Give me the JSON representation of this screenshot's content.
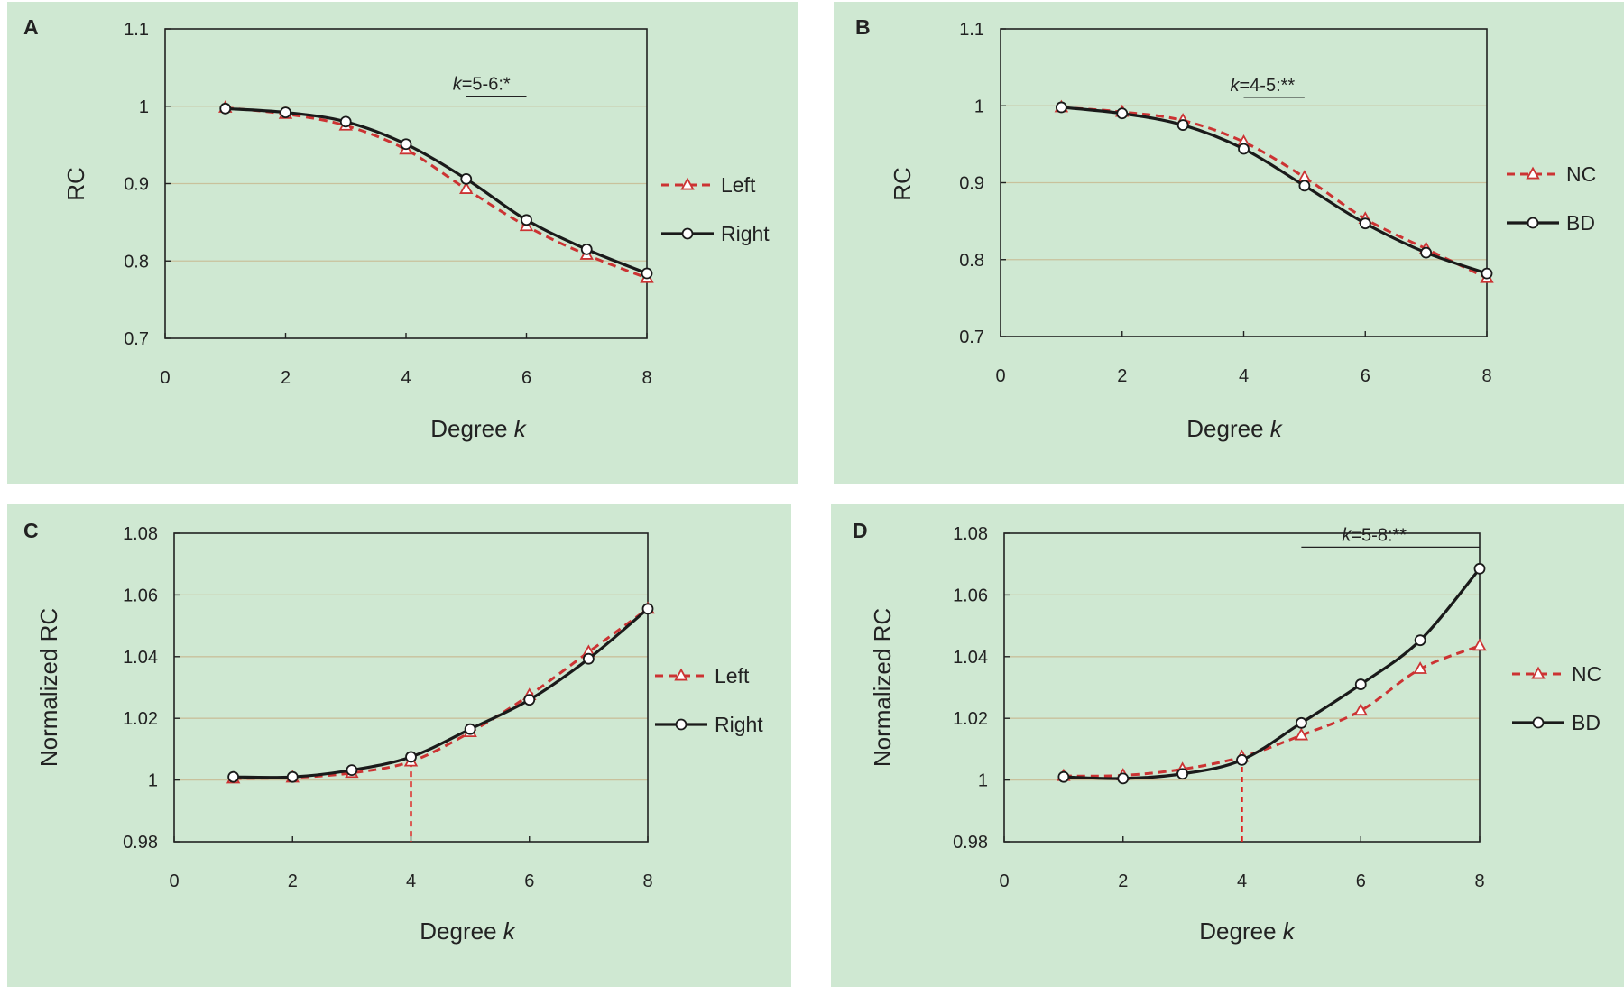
{
  "colors": {
    "panel_background": "#cfe8d2",
    "gridline": "#c9c19c",
    "series_red": "#cc3333",
    "series_black": "#1a1a1a",
    "reference_dash": "#e02020"
  },
  "chart_data": [
    {
      "id": "A",
      "type": "line",
      "letter": "A",
      "xlabel": "Degree",
      "xlabel_var": "k",
      "ylabel": "RC",
      "xlim": [
        0,
        8
      ],
      "ylim": [
        0.7,
        1.1
      ],
      "xticks": [
        0,
        2,
        4,
        6,
        8
      ],
      "yticks": [
        0.7,
        0.8,
        0.9,
        1.0,
        1.1
      ],
      "ytick_labels": [
        "0.7",
        "0.8",
        "0.9",
        "1",
        "1.1"
      ],
      "grid": true,
      "legend_position": "right",
      "series": [
        {
          "name": "Left",
          "style": "red-dashed-triangle",
          "x": [
            1,
            2,
            3,
            4,
            5,
            6,
            7,
            8
          ],
          "values": [
            0.998,
            0.99,
            0.975,
            0.944,
            0.893,
            0.845,
            0.808,
            0.778
          ]
        },
        {
          "name": "Right",
          "style": "black-solid-circle",
          "x": [
            1,
            2,
            3,
            4,
            5,
            6,
            7,
            8
          ],
          "values": [
            0.997,
            0.992,
            0.98,
            0.951,
            0.906,
            0.853,
            0.815,
            0.784
          ]
        }
      ],
      "annotation": {
        "var": "k",
        "text": "=5-6:*",
        "x_range": [
          5,
          6
        ],
        "y": 1.013
      },
      "reference_x": null
    },
    {
      "id": "B",
      "type": "line",
      "letter": "B",
      "xlabel": "Degree",
      "xlabel_var": "k",
      "ylabel": "RC",
      "xlim": [
        0,
        8
      ],
      "ylim": [
        0.7,
        1.1
      ],
      "xticks": [
        0,
        2,
        4,
        6,
        8
      ],
      "yticks": [
        0.7,
        0.8,
        0.9,
        1.0,
        1.1
      ],
      "ytick_labels": [
        "0.7",
        "0.8",
        "0.9",
        "1",
        "1.1"
      ],
      "grid": true,
      "legend_position": "right",
      "series": [
        {
          "name": "NC",
          "style": "red-dashed-triangle",
          "x": [
            1,
            2,
            3,
            4,
            5,
            6,
            7,
            8
          ],
          "values": [
            0.998,
            0.992,
            0.981,
            0.953,
            0.907,
            0.853,
            0.814,
            0.776
          ]
        },
        {
          "name": "BD",
          "style": "black-solid-circle",
          "x": [
            1,
            2,
            3,
            4,
            5,
            6,
            7,
            8
          ],
          "values": [
            0.998,
            0.99,
            0.975,
            0.944,
            0.896,
            0.847,
            0.809,
            0.782
          ]
        }
      ],
      "annotation": {
        "var": "k",
        "text": "=4-5:**",
        "x_range": [
          4,
          5
        ],
        "y": 1.011
      },
      "reference_x": null
    },
    {
      "id": "C",
      "type": "line",
      "letter": "C",
      "xlabel": "Degree",
      "xlabel_var": "k",
      "ylabel": "Normalized  RC",
      "xlim": [
        0,
        8
      ],
      "ylim": [
        0.98,
        1.08
      ],
      "xticks": [
        0,
        2,
        4,
        6,
        8
      ],
      "yticks": [
        0.98,
        1.0,
        1.02,
        1.04,
        1.06,
        1.08
      ],
      "ytick_labels": [
        "0.98",
        "1",
        "1.02",
        "1.04",
        "1.06",
        "1.08"
      ],
      "grid": true,
      "legend_position": "right",
      "series": [
        {
          "name": "Left",
          "style": "red-dashed-triangle",
          "x": [
            1,
            2,
            3,
            4,
            5,
            6,
            7,
            8
          ],
          "values": [
            1.0005,
            1.0008,
            1.0023,
            1.006,
            1.0155,
            1.0275,
            1.0415,
            1.0555
          ]
        },
        {
          "name": "Right",
          "style": "black-solid-circle",
          "x": [
            1,
            2,
            3,
            4,
            5,
            6,
            7,
            8
          ],
          "values": [
            1.001,
            1.001,
            1.0032,
            1.0075,
            1.0165,
            1.026,
            1.0393,
            1.0555
          ]
        }
      ],
      "annotation": null,
      "reference_x": 4
    },
    {
      "id": "D",
      "type": "line",
      "letter": "D",
      "xlabel": "Degree",
      "xlabel_var": "k",
      "ylabel": "Normalized  RC",
      "xlim": [
        0,
        8
      ],
      "ylim": [
        0.98,
        1.08
      ],
      "xticks": [
        0,
        2,
        4,
        6,
        8
      ],
      "yticks": [
        0.98,
        1.0,
        1.02,
        1.04,
        1.06,
        1.08
      ],
      "ytick_labels": [
        "0.98",
        "1",
        "1.02",
        "1.04",
        "1.06",
        "1.08"
      ],
      "grid": true,
      "legend_position": "right",
      "series": [
        {
          "name": "NC",
          "style": "red-dashed-triangle",
          "x": [
            1,
            2,
            3,
            4,
            5,
            6,
            7,
            8
          ],
          "values": [
            1.0013,
            1.0015,
            1.0035,
            1.0075,
            1.0145,
            1.0225,
            1.036,
            1.0435
          ]
        },
        {
          "name": "BD",
          "style": "black-solid-circle",
          "x": [
            1,
            2,
            3,
            4,
            5,
            6,
            7,
            8
          ],
          "values": [
            1.001,
            1.0005,
            1.002,
            1.0065,
            1.0185,
            1.031,
            1.0453,
            1.0685
          ]
        }
      ],
      "annotation": {
        "var": "k",
        "text": "=5-8:**",
        "x_range": [
          5,
          8
        ],
        "y": 1.0755
      },
      "reference_x": 4
    }
  ]
}
